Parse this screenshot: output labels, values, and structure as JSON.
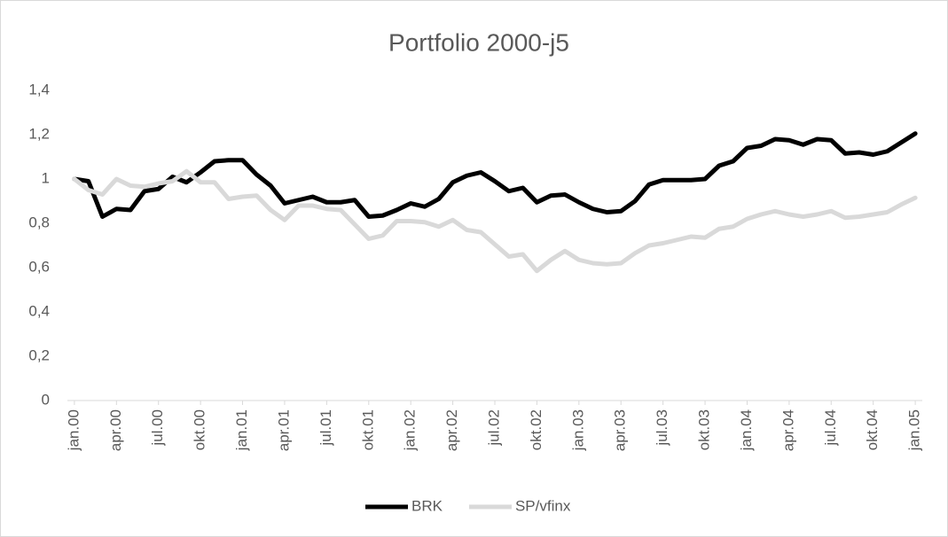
{
  "chart_data": {
    "type": "line",
    "title": "Portfolio 2000-j5",
    "categories": [
      "jan.00",
      null,
      null,
      "apr.00",
      null,
      null,
      "jul.00",
      null,
      null,
      "okt.00",
      null,
      null,
      "jan.01",
      null,
      null,
      "apr.01",
      null,
      null,
      "jul.01",
      null,
      null,
      "okt.01",
      null,
      null,
      "jan.02",
      null,
      null,
      "apr.02",
      null,
      null,
      "jul.02",
      null,
      null,
      "okt.02",
      null,
      null,
      "jan.03",
      null,
      null,
      "apr.03",
      null,
      null,
      "jul.03",
      null,
      null,
      "okt.03",
      null,
      null,
      "jan.04",
      null,
      null,
      "apr.04",
      null,
      null,
      "jul.04",
      null,
      null,
      "okt.04",
      null,
      null,
      "jan.05"
    ],
    "series": [
      {
        "name": "BRK",
        "color": "#000000",
        "values": [
          1.0,
          0.99,
          0.83,
          0.865,
          0.86,
          0.945,
          0.955,
          1.01,
          0.985,
          1.03,
          1.08,
          1.085,
          1.085,
          1.02,
          0.97,
          0.89,
          0.905,
          0.92,
          0.895,
          0.895,
          0.905,
          0.83,
          0.835,
          0.86,
          0.89,
          0.875,
          0.91,
          0.985,
          1.015,
          1.03,
          0.99,
          0.945,
          0.96,
          0.895,
          0.925,
          0.93,
          0.895,
          0.865,
          0.85,
          0.855,
          0.9,
          0.975,
          0.995,
          0.995,
          0.995,
          1.0,
          1.06,
          1.08,
          1.14,
          1.15,
          1.18,
          1.175,
          1.155,
          1.18,
          1.175,
          1.115,
          1.12,
          1.11,
          1.125,
          1.165,
          1.205
        ]
      },
      {
        "name": "SP/vfinx",
        "color": "#d9d9d9",
        "values": [
          1.0,
          0.95,
          0.93,
          1.0,
          0.97,
          0.965,
          0.98,
          0.99,
          1.035,
          0.985,
          0.985,
          0.91,
          0.92,
          0.925,
          0.86,
          0.815,
          0.88,
          0.88,
          0.865,
          0.86,
          0.795,
          0.73,
          0.745,
          0.81,
          0.81,
          0.805,
          0.785,
          0.815,
          0.77,
          0.76,
          0.705,
          0.65,
          0.66,
          0.585,
          0.635,
          0.675,
          0.635,
          0.62,
          0.615,
          0.62,
          0.665,
          0.7,
          0.71,
          0.725,
          0.74,
          0.735,
          0.775,
          0.785,
          0.82,
          0.84,
          0.855,
          0.84,
          0.83,
          0.84,
          0.855,
          0.825,
          0.83,
          0.84,
          0.85,
          0.885,
          0.915
        ]
      }
    ],
    "ylim": [
      0,
      1.4
    ],
    "yticks": [
      0,
      {
        "value": 0.2,
        "label": "0,2"
      },
      {
        "value": 0.4,
        "label": "0,4"
      },
      {
        "value": 0.6,
        "label": "0,6"
      },
      {
        "value": 0.8,
        "label": "0,8"
      },
      1,
      {
        "value": 1.2,
        "label": "1,2"
      },
      {
        "value": 1.4,
        "label": "1,4"
      }
    ],
    "grid": false,
    "legend": "bottom"
  }
}
